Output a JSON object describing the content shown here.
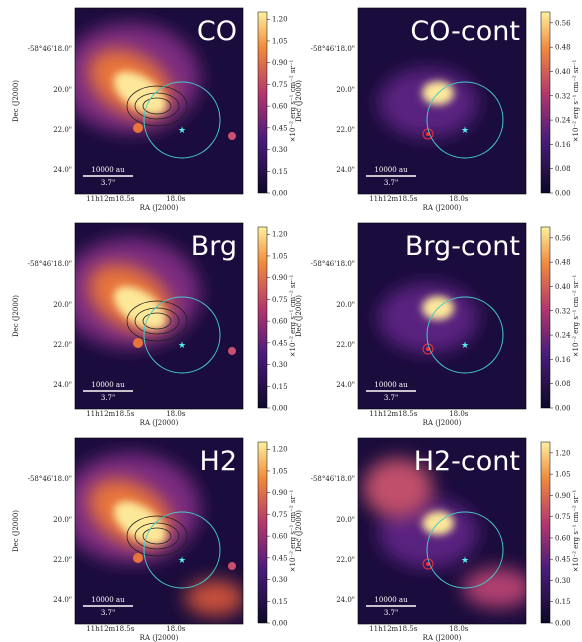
{
  "axes": {
    "x_label": "RA (J2000)",
    "y_label": "Dec (J2000)",
    "x_ticks": [
      "11h12m18.5s",
      "18.0s"
    ],
    "y_ticks": [
      "-58°46'18.0\"",
      "20.0\"",
      "22.0\"",
      "24.0\""
    ],
    "scale_bar": "10000 au",
    "scale_angle": "3.7\""
  },
  "colorbar_label": "×10⁻² erg s⁻¹ cm⁻² sr⁻¹",
  "panels": [
    {
      "label": "CO",
      "colorbar_ticks": [
        "0.00",
        "0.15",
        "0.30",
        "0.45",
        "0.60",
        "0.75",
        "0.90",
        "1.05",
        "1.20"
      ]
    },
    {
      "label": "CO-cont",
      "colorbar_ticks": [
        "0.00",
        "0.08",
        "0.16",
        "0.24",
        "0.32",
        "0.40",
        "0.48",
        "0.56"
      ]
    },
    {
      "label": "Brg",
      "colorbar_ticks": [
        "0.00",
        "0.15",
        "0.30",
        "0.45",
        "0.60",
        "0.75",
        "0.90",
        "1.05",
        "1.20"
      ]
    },
    {
      "label": "Brg-cont",
      "colorbar_ticks": [
        "0.00",
        "0.08",
        "0.16",
        "0.24",
        "0.32",
        "0.40",
        "0.48",
        "0.56"
      ]
    },
    {
      "label": "H2",
      "colorbar_ticks": [
        "0.00",
        "0.15",
        "0.30",
        "0.45",
        "0.60",
        "0.75",
        "0.90",
        "1.05",
        "1.20"
      ]
    },
    {
      "label": "H2-cont",
      "colorbar_ticks": [
        "0.00",
        "0.15",
        "0.30",
        "0.45",
        "0.60",
        "0.75",
        "0.90",
        "1.05",
        "1.20"
      ]
    }
  ]
}
